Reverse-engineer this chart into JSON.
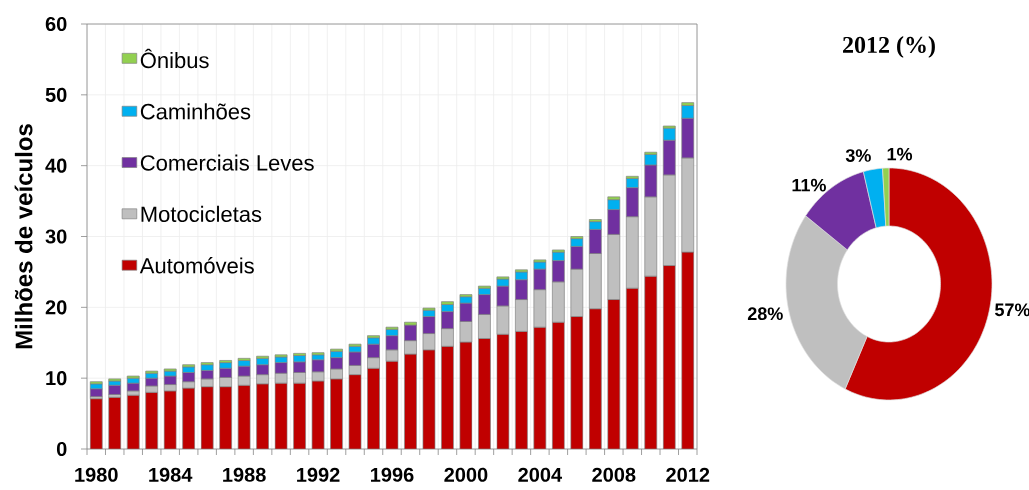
{
  "chart_data": [
    {
      "type": "bar",
      "stacked": true,
      "ylabel": "Milhões de veículos",
      "categories": [
        "1980",
        null,
        null,
        null,
        "1984",
        null,
        null,
        null,
        "1988",
        null,
        null,
        null,
        "1992",
        null,
        null,
        null,
        "1996",
        null,
        null,
        null,
        "2000",
        null,
        null,
        null,
        "2004",
        null,
        null,
        null,
        "2008",
        null,
        null,
        null,
        "2012"
      ],
      "series": [
        {
          "name": "Automóveis",
          "color": "#c00000",
          "values": [
            7.1,
            7.3,
            7.6,
            8.0,
            8.2,
            8.6,
            8.8,
            8.8,
            9.0,
            9.2,
            9.3,
            9.3,
            9.6,
            9.9,
            10.5,
            11.4,
            12.4,
            13.4,
            14.0,
            14.5,
            15.1,
            15.6,
            16.2,
            16.6,
            17.2,
            17.9,
            18.7,
            19.8,
            21.1,
            22.7,
            24.4,
            25.9,
            27.8
          ]
        },
        {
          "name": "Motocicletas",
          "color": "#bfbfbf",
          "values": [
            0.3,
            0.4,
            0.6,
            0.9,
            0.9,
            0.9,
            1.1,
            1.3,
            1.3,
            1.3,
            1.4,
            1.5,
            1.3,
            1.4,
            1.3,
            1.5,
            1.6,
            1.9,
            2.3,
            2.5,
            2.9,
            3.4,
            4.0,
            4.5,
            5.3,
            5.7,
            6.7,
            7.8,
            9.2,
            10.1,
            11.2,
            12.8,
            13.3
          ]
        },
        {
          "name": "Comerciais Leves",
          "color": "#7030a0",
          "values": [
            1.1,
            1.3,
            1.1,
            1.1,
            1.2,
            1.3,
            1.2,
            1.3,
            1.4,
            1.4,
            1.5,
            1.5,
            1.7,
            1.6,
            1.9,
            1.9,
            2.0,
            2.2,
            2.4,
            2.4,
            2.6,
            2.8,
            2.8,
            2.8,
            2.9,
            3.0,
            3.2,
            3.4,
            3.5,
            4.1,
            4.5,
            4.9,
            5.6
          ]
        },
        {
          "name": "Caminhões",
          "color": "#00b0f0",
          "values": [
            0.7,
            0.6,
            0.7,
            0.7,
            0.7,
            0.8,
            0.8,
            0.8,
            0.8,
            0.9,
            0.8,
            0.9,
            0.7,
            0.9,
            0.8,
            0.9,
            0.9,
            null,
            0.9,
            1.0,
            0.9,
            0.9,
            1.0,
            1.1,
            1.0,
            1.2,
            1.1,
            1.1,
            1.4,
            1.3,
            1.5,
            1.7,
            1.8
          ]
        },
        {
          "name": "Ônibus",
          "color": "#92d050",
          "values": [
            0.3,
            0.3,
            0.3,
            0.3,
            0.3,
            0.3,
            0.3,
            0.3,
            0.3,
            0.3,
            0.3,
            0.3,
            0.3,
            0.3,
            0.3,
            0.3,
            0.3,
            0.4,
            0.3,
            0.4,
            0.3,
            0.3,
            0.3,
            0.3,
            0.3,
            0.3,
            0.3,
            0.3,
            0.4,
            0.3,
            0.3,
            0.3,
            0.4
          ]
        }
      ],
      "ylim": [
        0,
        60
      ],
      "yticks": [
        0,
        10,
        20,
        30,
        40,
        50,
        60
      ],
      "grid": true,
      "legend": "top left"
    },
    {
      "type": "donut",
      "title": "2012 (%)",
      "categories": [
        null,
        null,
        null,
        null,
        null
      ],
      "values": [
        57,
        28,
        11,
        3,
        1
      ],
      "colors": [
        "#c00000",
        "#bfbfbf",
        "#7030a0",
        "#00b0f0",
        "#92d050"
      ],
      "value_labels": [
        "57%",
        "28%",
        "11%",
        "3%",
        "1%"
      ]
    }
  ]
}
